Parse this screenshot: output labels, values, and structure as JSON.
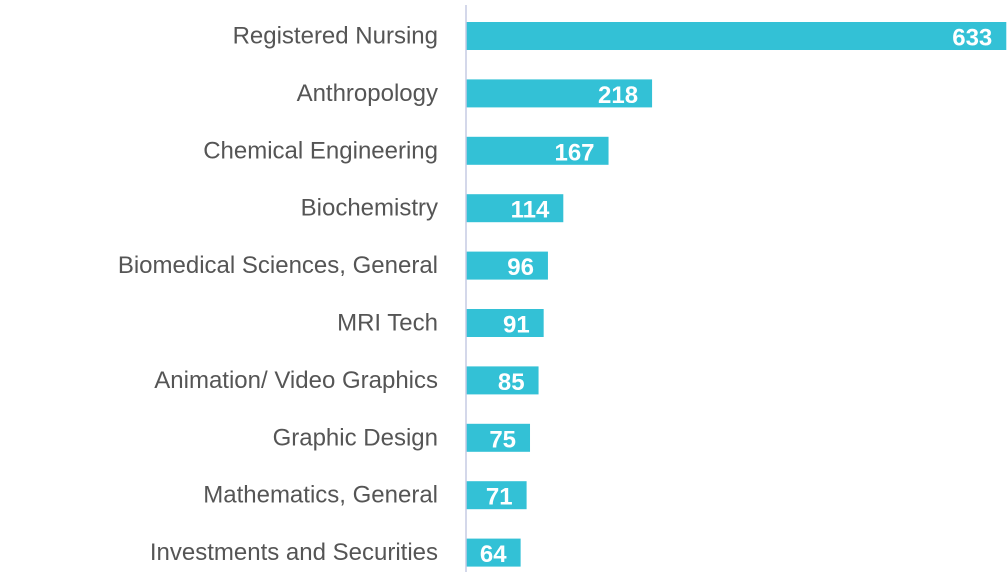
{
  "chart_data": {
    "type": "bar",
    "orientation": "horizontal",
    "categories": [
      "Registered Nursing",
      "Anthropology",
      "Chemical Engineering",
      "Biochemistry",
      "Biomedical Sciences, General",
      "MRI Tech",
      "Animation/ Video Graphics",
      "Graphic Design",
      "Mathematics, General",
      "Investments and Securities"
    ],
    "values": [
      633,
      218,
      167,
      114,
      96,
      91,
      85,
      75,
      71,
      64
    ],
    "color": "#33c1d6",
    "xlim": [
      0,
      635
    ]
  }
}
